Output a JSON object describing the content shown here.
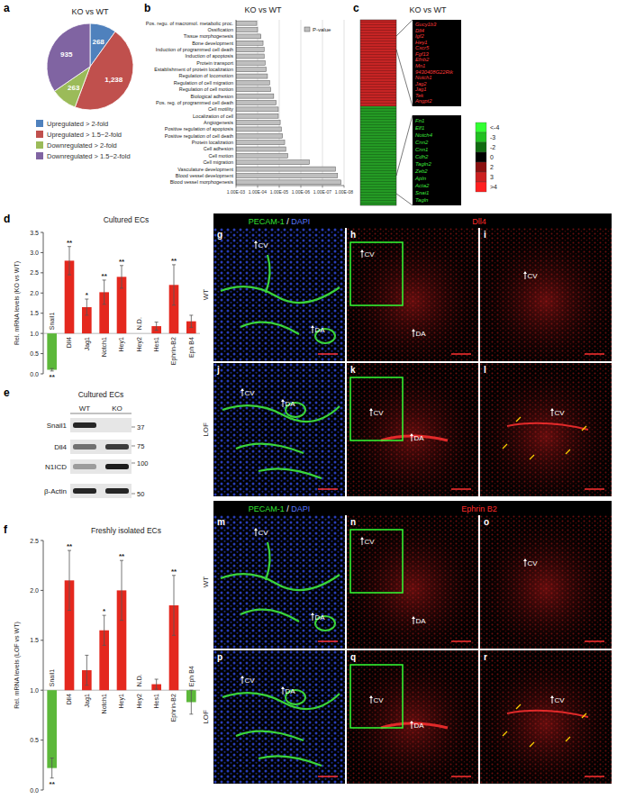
{
  "panel_labels": [
    "a",
    "b",
    "c",
    "d",
    "e",
    "f"
  ],
  "chart_data": [
    {
      "type": "pie",
      "title": "KO vs WT",
      "categories": [
        "Upregulated > 2-fold",
        "Upregulated > 1.5~2-fold",
        "Downregulated > 2-fold",
        "Downregulated > 1.5~2-fold"
      ],
      "values": [
        268,
        1238,
        263,
        935
      ],
      "value_labels": [
        "268",
        "1,238",
        "263",
        "935"
      ],
      "colors": [
        "#4f81bd",
        "#c0504d",
        "#9bbb59",
        "#8064a2"
      ],
      "data_labels": true,
      "legend": "bottom"
    },
    {
      "type": "bar",
      "orientation": "horizontal",
      "title": "KO vs WT",
      "categories": [
        "Pos. regu. of macromol. metabolic proc.",
        "Ossification",
        "Tissue morphogenesis",
        "Bone development",
        "Induction of programmed cell death",
        "Induction of apoptosis",
        "Protein transport",
        "Establishment of protein localization",
        "Regulation of locomotion",
        "Regulation of cell migration",
        "Regulation of cell motion",
        "Biological adhesion",
        "Pos. reg. of programmed cell death",
        "Cell motility",
        "Localization of cell",
        "Angiogenesis",
        "Positive regulation of apoptosis",
        "Positive regulation of cell death",
        "Protein localization",
        "Cell adhesion",
        "Cell motion",
        "Cell migration",
        "Vasculature development",
        "Blood vessel development",
        "Blood vessel morphogenesis"
      ],
      "series": [
        {
          "name": "P-value",
          "color": "#bfbfbf",
          "values": [
            0.00011,
            0.0001,
            7e-05,
            5.6e-05,
            5e-05,
            5e-05,
            4.5e-05,
            4e-05,
            3.5e-05,
            2.8e-05,
            2.5e-05,
            1.8e-05,
            1.4e-05,
            1.1e-05,
            1.1e-05,
            9e-06,
            8e-06,
            7e-06,
            5.6e-06,
            5e-06,
            4e-06,
            4e-07,
            2.5e-08,
            2e-08,
            1.4e-08
          ]
        }
      ],
      "log": "x",
      "xlim": [
        0.001,
        1e-08
      ],
      "xticks": [
        {
          "value": 0.001,
          "label": "1.00E-03"
        },
        {
          "value": 0.0001,
          "label": "1.00E-04"
        },
        {
          "value": 1e-05,
          "label": "1.00E-05"
        },
        {
          "value": 1e-06,
          "label": "1.00E-06"
        },
        {
          "value": 1e-07,
          "label": "1.00E-07"
        },
        {
          "value": 1e-08,
          "label": "1.00E-08"
        }
      ],
      "grid": true,
      "legend": "top-right"
    },
    {
      "type": "bar",
      "title": "Cultured ECs",
      "y_label": "Rel. mRNA levels (KO vs WT)",
      "categories": [
        "Snail1",
        "Dll4",
        "Jag1",
        "Notch1",
        "Hey1",
        "Hey2",
        "Hes1",
        "Ephrin-B2",
        "Eph B4"
      ],
      "values": [
        0.1,
        2.8,
        1.65,
        2.02,
        2.4,
        null,
        1.18,
        2.2,
        1.3
      ],
      "errors": [
        0.03,
        0.35,
        0.2,
        0.3,
        0.28,
        null,
        0.1,
        0.5,
        0.15
      ],
      "annotations": [
        "**",
        "**",
        "*",
        "**",
        "**",
        "N.D.",
        null,
        "**",
        null
      ],
      "colors": [
        "#5cb83a",
        "#e4281e",
        "#e4281e",
        "#e4281e",
        "#e4281e",
        "#e4281e",
        "#e4281e",
        "#e4281e",
        "#e4281e"
      ],
      "baseline": 1,
      "ylim": [
        0,
        3.5
      ],
      "yticks": [
        {
          "value": 0,
          "label": "0.0"
        },
        0.5,
        {
          "value": 1,
          "label": "1.0"
        },
        1.5,
        {
          "value": 2,
          "label": "2.0"
        },
        2.5,
        {
          "value": 3,
          "label": "3.0"
        },
        3.5
      ]
    },
    {
      "type": "bar",
      "title": "Freshly isolated ECs",
      "y_label": "Rel. mRNA levels (LOF vs WT)",
      "categories": [
        "Snail1",
        "Dll4",
        "Jag1",
        "Notch1",
        "Hey1",
        "Hey2",
        "Hes1",
        "Ephrin-B2",
        "Eph B4"
      ],
      "values": [
        0.22,
        2.1,
        1.2,
        1.6,
        2.0,
        null,
        1.06,
        1.85,
        0.88
      ],
      "errors": [
        0.1,
        0.3,
        0.15,
        0.15,
        0.3,
        null,
        0.05,
        0.3,
        0.12
      ],
      "annotations": [
        "**",
        "**",
        null,
        "*",
        "**",
        "N.D.",
        null,
        "**",
        null
      ],
      "colors": [
        "#5cb83a",
        "#e4281e",
        "#e4281e",
        "#e4281e",
        "#e4281e",
        "#e4281e",
        "#e4281e",
        "#e4281e",
        "#5cb83a"
      ],
      "baseline": 1,
      "ylim": [
        0,
        2.5
      ],
      "yticks": [
        {
          "value": 0,
          "label": "0.0"
        },
        0.5,
        {
          "value": 1,
          "label": "1.0"
        },
        1.5,
        {
          "value": 2,
          "label": "2.0"
        },
        2.5
      ]
    }
  ],
  "heatmap": {
    "title": "KO vs WT",
    "up_genes": [
      "Gucy1b3",
      "Dll4",
      "Igf2",
      "Hey1",
      "Cxcr5",
      "Fgf13",
      "Efnb2",
      "Mn1",
      "9430408G22Rik",
      "Notch1",
      "Jag2",
      "Jag1",
      "Tek",
      "Angpt2"
    ],
    "down_genes": [
      "Fn1",
      "Elf1",
      "Notch4",
      "Cnn2",
      "Cnn1",
      "Cdh2",
      "Tagln2",
      "Zeb2",
      "Apln",
      "Acta2",
      "Snai1",
      "Tagln"
    ],
    "colorbar": {
      "ticks": [
        {
          "value": -4,
          "label": "<-4"
        },
        -3,
        -2,
        0,
        2,
        3,
        {
          "value": 4,
          "label": ">4"
        }
      ],
      "colors": [
        "#33ff33",
        "#22c022",
        "#116b11",
        "#000000",
        "#8a1010",
        "#cc2020",
        "#ff2020"
      ]
    }
  },
  "blot": {
    "title": "Cultured ECs",
    "lanes": [
      "WT",
      "KO"
    ],
    "rows": [
      "Snail1",
      "Dll4",
      "N1ICD",
      "β-Actin"
    ],
    "markers": [
      37,
      75,
      100,
      50
    ]
  },
  "micrographs": {
    "sections": [
      {
        "headers": [
          {
            "parts": [
              "PECAM-1",
              " / ",
              "DAPI"
            ],
            "colors": [
              "#33e033",
              "#ffffff",
              "#5a78ff"
            ]
          },
          {
            "parts": [
              "Dll4"
            ],
            "colors": [
              "#ff2a2a"
            ]
          }
        ],
        "rows": [
          {
            "label": "WT",
            "panels": [
              {
                "letter": "g",
                "labels": [
                  "CV",
                  "DA"
                ]
              },
              {
                "letter": "h",
                "labels": [
                  "CV",
                  "DA"
                ]
              },
              {
                "letter": "i",
                "labels": [
                  "CV"
                ]
              }
            ]
          },
          {
            "label": "LOF",
            "panels": [
              {
                "letter": "j",
                "labels": [
                  "CV",
                  "DA"
                ]
              },
              {
                "letter": "k",
                "labels": [
                  "CV",
                  "DA"
                ]
              },
              {
                "letter": "l",
                "labels": [
                  "CV"
                ]
              }
            ]
          }
        ]
      },
      {
        "headers": [
          {
            "parts": [
              "PECAM-1",
              " / ",
              "DAPI"
            ],
            "colors": [
              "#33e033",
              "#ffffff",
              "#5a78ff"
            ]
          },
          {
            "parts": [
              "Ephrin B2"
            ],
            "colors": [
              "#ff2a2a"
            ]
          }
        ],
        "rows": [
          {
            "label": "WT",
            "panels": [
              {
                "letter": "m",
                "labels": [
                  "CV",
                  "DA"
                ]
              },
              {
                "letter": "n",
                "labels": [
                  "CV",
                  "DA"
                ]
              },
              {
                "letter": "o",
                "labels": [
                  "CV"
                ]
              }
            ]
          },
          {
            "label": "LOF",
            "panels": [
              {
                "letter": "p",
                "labels": [
                  "CV",
                  "DA"
                ]
              },
              {
                "letter": "q",
                "labels": [
                  "CV",
                  "DA"
                ]
              },
              {
                "letter": "r",
                "labels": [
                  "CV"
                ]
              }
            ]
          }
        ]
      }
    ]
  }
}
